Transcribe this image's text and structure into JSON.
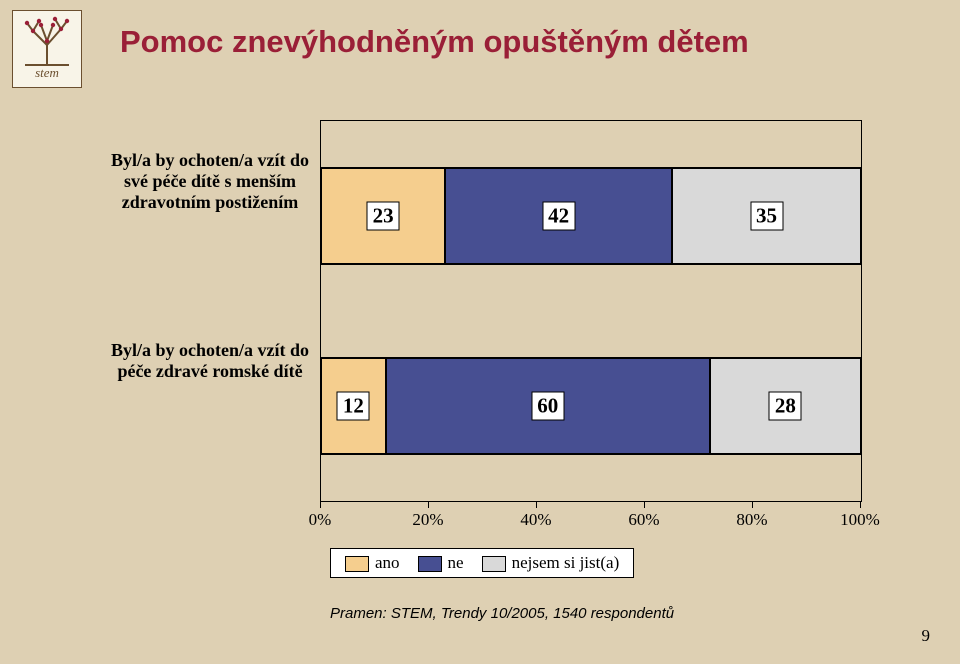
{
  "brand": {
    "name": "stem"
  },
  "title": "Pomoc znevýhodněným opuštěným dětem",
  "chart": {
    "type": "stacked-bar-horizontal",
    "xlim": [
      0,
      100
    ],
    "ticks": [
      0,
      20,
      40,
      60,
      80,
      100
    ],
    "tick_labels": [
      "0%",
      "20%",
      "40%",
      "60%",
      "80%",
      "100%"
    ],
    "colors": {
      "ano": "#f5ce8e",
      "ne": "#474f92",
      "nejsem": "#d9d9d9"
    },
    "bar_background": "#ffffff",
    "label_fontsize": 17,
    "label_fontweight": "bold",
    "categories": [
      {
        "label": "Byl/a by ochoten/a vzít do své péče dítě s menším zdravotním postižením",
        "segments": [
          {
            "key": "ano",
            "value": 23
          },
          {
            "key": "ne",
            "value": 42
          },
          {
            "key": "nejsem",
            "value": 35
          }
        ]
      },
      {
        "label": "Byl/a by ochoten/a vzít do péče zdravé romské dítě",
        "segments": [
          {
            "key": "ano",
            "value": 12
          },
          {
            "key": "ne",
            "value": 60
          },
          {
            "key": "nejsem",
            "value": 28
          }
        ]
      }
    ],
    "legend": [
      {
        "key": "ano",
        "label": "ano"
      },
      {
        "key": "ne",
        "label": "ne"
      },
      {
        "key": "nejsem",
        "label": "nejsem si jist(a)"
      }
    ]
  },
  "source": "Pramen: STEM, Trendy 10/2005, 1540 respondentů",
  "page_number": "9",
  "page_bg": "#ded0b3"
}
